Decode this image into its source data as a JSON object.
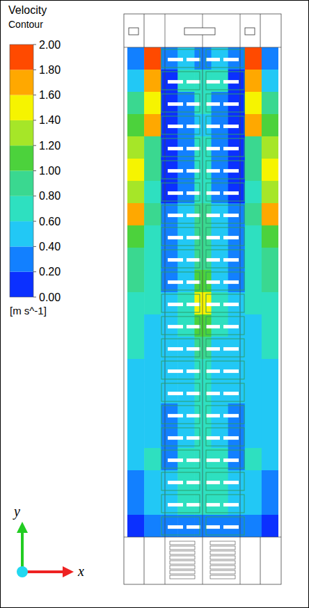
{
  "chart_data": {
    "type": "heatmap",
    "title": "Velocity",
    "subtitle": "Contour",
    "unit_label": "[m s^-1]",
    "x_label": "x",
    "y_label": "y",
    "tick_labels": false,
    "cells": [
      [
        0.3,
        1.8,
        0.2,
        0.4,
        0.3,
        0.4,
        0.2,
        1.8,
        0.3
      ],
      [
        0.5,
        1.7,
        0.1,
        0.6,
        0.7,
        0.6,
        0.1,
        1.7,
        0.5
      ],
      [
        0.9,
        1.5,
        0.1,
        0.3,
        0.6,
        0.3,
        0.1,
        1.5,
        0.9
      ],
      [
        1.1,
        1.6,
        0.1,
        0.2,
        0.5,
        0.2,
        0.1,
        1.6,
        1.1
      ],
      [
        1.3,
        0.9,
        0.1,
        0.2,
        0.6,
        0.2,
        0.1,
        0.9,
        1.3
      ],
      [
        1.5,
        0.8,
        0.1,
        0.3,
        0.7,
        0.3,
        0.1,
        0.8,
        1.5
      ],
      [
        1.3,
        0.7,
        0.1,
        0.3,
        0.7,
        0.3,
        0.1,
        0.7,
        1.3
      ],
      [
        1.6,
        0.8,
        0.2,
        0.4,
        0.8,
        0.4,
        0.2,
        0.8,
        1.6
      ],
      [
        1.1,
        0.7,
        0.3,
        0.5,
        0.8,
        0.5,
        0.3,
        0.7,
        1.1
      ],
      [
        0.9,
        0.6,
        0.3,
        0.5,
        0.9,
        0.5,
        0.3,
        0.6,
        0.9
      ],
      [
        0.8,
        0.6,
        0.3,
        0.5,
        1.0,
        0.5,
        0.3,
        0.6,
        0.8
      ],
      [
        0.7,
        0.6,
        0.4,
        0.6,
        1.4,
        0.6,
        0.4,
        0.6,
        0.7
      ],
      [
        0.6,
        0.5,
        0.4,
        0.6,
        1.1,
        0.6,
        0.4,
        0.5,
        0.6
      ],
      [
        0.6,
        0.5,
        0.4,
        0.5,
        0.8,
        0.5,
        0.4,
        0.5,
        0.6
      ],
      [
        0.5,
        0.5,
        0.4,
        0.5,
        0.7,
        0.5,
        0.4,
        0.5,
        0.5
      ],
      [
        0.5,
        0.5,
        0.4,
        0.5,
        0.6,
        0.5,
        0.4,
        0.5,
        0.5
      ],
      [
        0.5,
        0.5,
        0.3,
        0.5,
        0.6,
        0.5,
        0.3,
        0.5,
        0.5
      ],
      [
        0.4,
        0.5,
        0.3,
        0.5,
        0.6,
        0.5,
        0.3,
        0.5,
        0.4
      ],
      [
        0.4,
        0.6,
        0.3,
        0.6,
        0.7,
        0.6,
        0.3,
        0.6,
        0.4
      ],
      [
        0.3,
        0.5,
        0.4,
        0.7,
        0.7,
        0.7,
        0.4,
        0.5,
        0.3
      ],
      [
        0.2,
        0.4,
        0.4,
        0.6,
        0.6,
        0.6,
        0.4,
        0.4,
        0.2
      ],
      [
        0.1,
        0.2,
        0.2,
        0.3,
        0.3,
        0.3,
        0.2,
        0.2,
        0.1
      ]
    ],
    "colorbar": {
      "range": [
        0,
        2
      ],
      "ticks": [
        {
          "value": 2,
          "label": "2.00"
        },
        {
          "value": 1.8,
          "label": "1.80"
        },
        {
          "value": 1.6,
          "label": "1.60"
        },
        {
          "value": 1.4,
          "label": "1.40"
        },
        {
          "value": 1.2,
          "label": "1.20"
        },
        {
          "value": 1,
          "label": "1.00"
        },
        {
          "value": 0.8,
          "label": "0.80"
        },
        {
          "value": 0.6,
          "label": "0.60"
        },
        {
          "value": 0.4,
          "label": "0.40"
        },
        {
          "value": 0.2,
          "label": "0.20"
        },
        {
          "value": 0,
          "label": "0.00"
        }
      ],
      "colors": [
        "#0b30ff",
        "#1280ff",
        "#22c8f5",
        "#2ee0c0",
        "#3ad890",
        "#4cd23c",
        "#a6e628",
        "#f6f400",
        "#ffa800",
        "#ff4a00"
      ]
    }
  }
}
